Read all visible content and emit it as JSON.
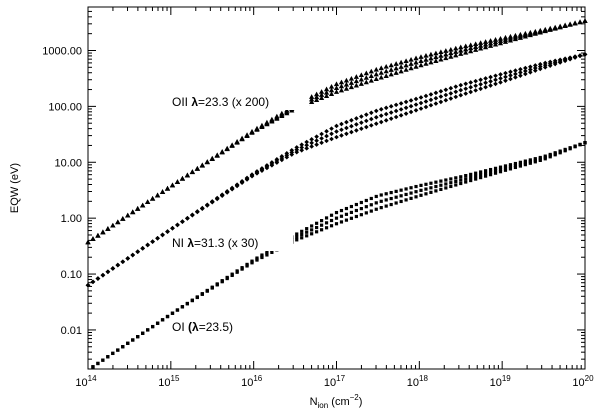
{
  "chart_data": {
    "type": "scatter",
    "xlabel": "N_ion (cm^-2)",
    "ylabel": "EQW (eV)",
    "x_scale": "log",
    "y_scale": "log",
    "xlim": [
      100000000000000.0,
      1e+20
    ],
    "ylim": [
      0.002,
      6000
    ],
    "x_ticks": [
      {
        "value": 100000000000000.0,
        "mant": "10",
        "exp": "14"
      },
      {
        "value": 1000000000000000.0,
        "mant": "10",
        "exp": "15"
      },
      {
        "value": 1e+16,
        "mant": "10",
        "exp": "16"
      },
      {
        "value": 1e+17,
        "mant": "10",
        "exp": "17"
      },
      {
        "value": 1e+18,
        "mant": "10",
        "exp": "18"
      },
      {
        "value": 1e+19,
        "mant": "10",
        "exp": "19"
      },
      {
        "value": 1e+20,
        "mant": "10",
        "exp": "20"
      }
    ],
    "y_ticks": [
      {
        "value": 0.01,
        "label": "0.01"
      },
      {
        "value": 0.1,
        "label": "0.10"
      },
      {
        "value": 1,
        "label": "1.00"
      },
      {
        "value": 10,
        "label": "10.00"
      },
      {
        "value": 100,
        "label": "100.00"
      },
      {
        "value": 1000,
        "label": "1000.00"
      }
    ],
    "xlabel_main": "N",
    "xlabel_sub": "ion",
    "xlabel_unit": "(cm",
    "xlabel_unit_exp": "−2",
    "xlabel_unit_close": ")",
    "ylabel_text": "EQW (eV)",
    "series": [
      {
        "name": "OII λ=23.3 (x 200)",
        "marker": "triangle",
        "low_logN": [
          14,
          15,
          16,
          16.5,
          17,
          17.5,
          18,
          18.5,
          19,
          19.5,
          20
        ],
        "low_logEQW": [
          -0.43,
          0.57,
          1.55,
          1.96,
          2.26,
          2.5,
          2.73,
          2.94,
          3.14,
          3.34,
          3.53
        ],
        "high_logN": [
          14,
          15,
          16,
          16.5,
          17,
          17.5,
          18,
          18.5,
          19,
          19.5,
          20
        ],
        "high_logEQW": [
          -0.43,
          0.57,
          1.57,
          2.02,
          2.4,
          2.67,
          2.88,
          3.06,
          3.22,
          3.37,
          3.53
        ],
        "label_parts": {
          "ion": "OII",
          "lambda": "λ",
          "rest": "=23.3 (x 200)"
        }
      },
      {
        "name": "NI λ=31.3 (x 30)",
        "marker": "diamond",
        "low_logN": [
          14,
          15,
          16,
          16.5,
          17,
          17.5,
          18,
          18.5,
          19,
          19.5,
          20
        ],
        "low_logEQW": [
          -1.2,
          -0.2,
          0.77,
          1.17,
          1.45,
          1.7,
          1.95,
          2.2,
          2.44,
          2.69,
          2.93
        ],
        "high_logN": [
          14,
          15,
          16,
          16.5,
          17,
          17.5,
          18,
          18.5,
          19,
          19.5,
          20
        ],
        "high_logEQW": [
          -1.2,
          -0.2,
          0.8,
          1.25,
          1.65,
          1.93,
          2.15,
          2.38,
          2.58,
          2.77,
          2.93
        ],
        "label_parts": {
          "ion": "NI",
          "lambda": "λ",
          "rest": "=31.3 (x 30)"
        }
      },
      {
        "name": "OI (λ=23.5)",
        "marker": "square",
        "low_logN": [
          14,
          15,
          16,
          16.5,
          17,
          17.5,
          18,
          18.5,
          19,
          19.5,
          20
        ],
        "low_logEQW": [
          -2.72,
          -1.72,
          -0.78,
          -0.4,
          -0.1,
          0.17,
          0.4,
          0.62,
          0.84,
          1.05,
          1.35
        ],
        "high_logN": [
          14,
          15,
          16,
          16.5,
          17,
          17.5,
          18,
          18.5,
          19,
          19.5,
          20
        ],
        "high_logEQW": [
          -2.72,
          -1.72,
          -0.75,
          -0.3,
          0.1,
          0.4,
          0.58,
          0.74,
          0.92,
          1.1,
          1.35
        ],
        "label_parts": {
          "ion": "OI",
          "lambda": "(λ",
          "rest": "=23.5)"
        }
      }
    ]
  }
}
